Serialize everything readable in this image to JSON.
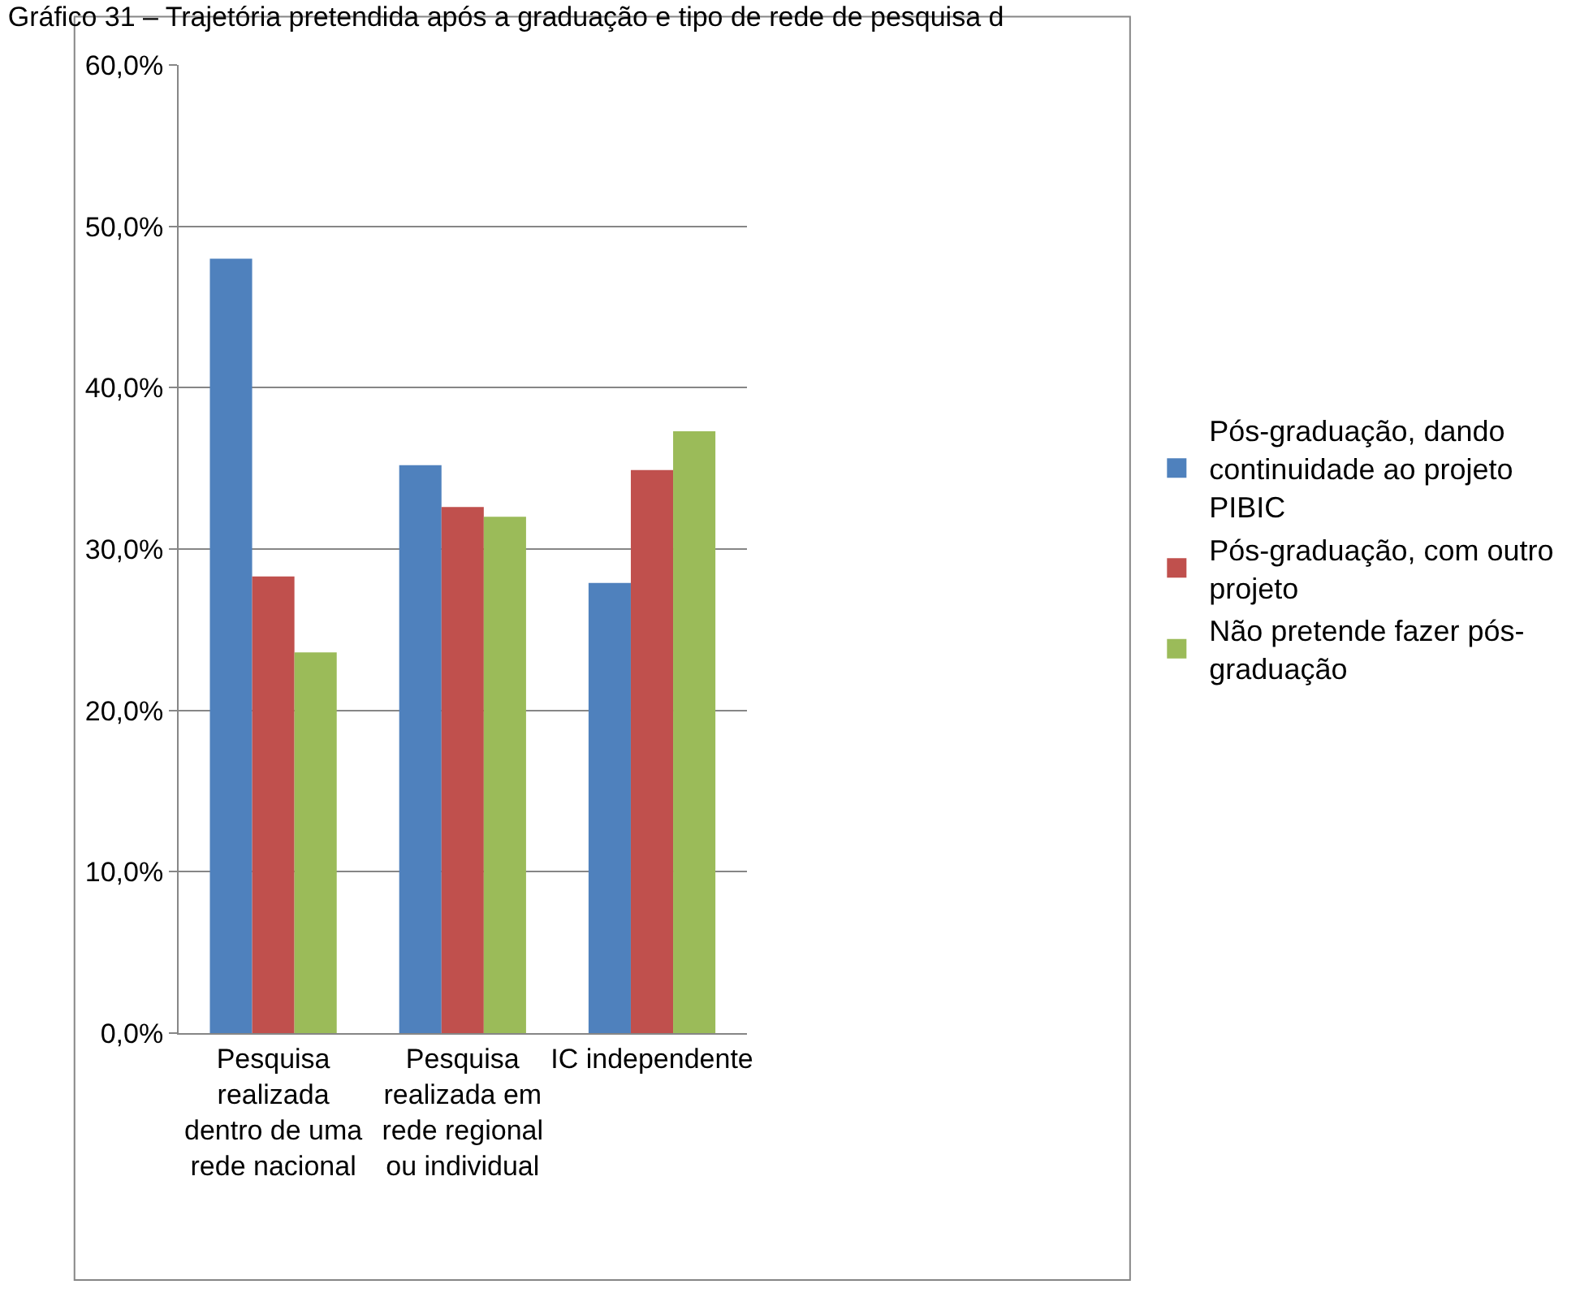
{
  "chart_data": {
    "type": "bar",
    "title": "Gráfico 31 – Trajetória pretendida após a graduação e tipo de rede de pesquisa d",
    "categories": [
      "Pesquisa realizada dentro de uma rede nacional",
      "Pesquisa realizada em rede regional ou individual",
      "IC independente"
    ],
    "series": [
      {
        "name": "Pós-graduação, dando continuidade ao projeto PIBIC",
        "color": "#4f81bd",
        "values": [
          48.0,
          35.2,
          27.9
        ]
      },
      {
        "name": "Pós-graduação, com outro projeto",
        "color": "#c0504d",
        "values": [
          28.3,
          32.6,
          34.9
        ]
      },
      {
        "name": "Não pretende fazer pós-graduação",
        "color": "#9bbb59",
        "values": [
          23.6,
          32.0,
          37.3
        ]
      }
    ],
    "ylim": [
      0,
      60
    ],
    "yticks": [
      {
        "value": 0,
        "label": "0,0%"
      },
      {
        "value": 10,
        "label": "10,0%"
      },
      {
        "value": 20,
        "label": "20,0%"
      },
      {
        "value": 30,
        "label": "30,0%"
      },
      {
        "value": 40,
        "label": "40,0%"
      },
      {
        "value": 50,
        "label": "50,0%"
      },
      {
        "value": 60,
        "label": "60,0%"
      }
    ],
    "grid": "y",
    "legend": "right"
  }
}
